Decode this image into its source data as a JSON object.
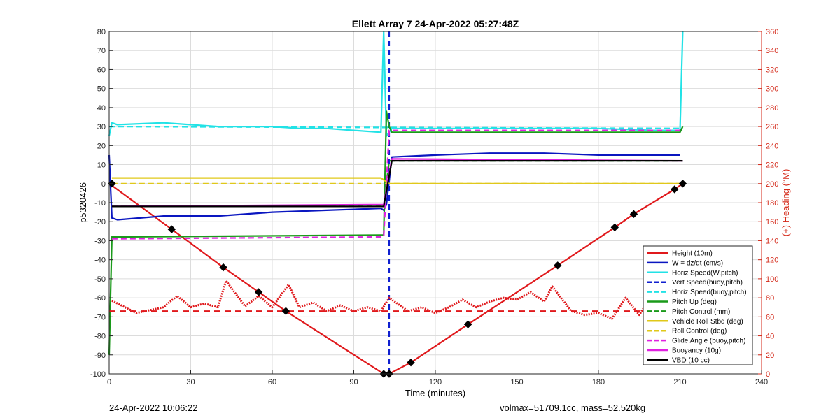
{
  "chart_data": {
    "type": "line",
    "title": "Ellett Array 7 24-Apr-2022 05:27:48Z",
    "xlabel": "Time (minutes)",
    "ylabel": "p5320426",
    "ylabel_right": "(+) Heading (°M)",
    "xlim": [
      0,
      240
    ],
    "ylim": [
      -100,
      80
    ],
    "ylim_right": [
      0,
      360
    ],
    "x_ticks": [
      "0",
      "30",
      "60",
      "90",
      "120",
      "150",
      "180",
      "210",
      "240"
    ],
    "y_ticks": [
      "80",
      "70",
      "60",
      "50",
      "40",
      "30",
      "20",
      "10",
      "0",
      "-10",
      "-20",
      "-30",
      "-40",
      "-50",
      "-60",
      "-70",
      "-80",
      "-90",
      "-100"
    ],
    "y_right_ticks": [
      "360",
      "340",
      "320",
      "300",
      "280",
      "260",
      "240",
      "220",
      "200",
      "180",
      "160",
      "140",
      "120",
      "100",
      "80",
      "60",
      "40",
      "20",
      "0"
    ],
    "grid": true,
    "legend_position": "bottom-right",
    "colors": {
      "height": "#e0191c",
      "w": "#0a16c0",
      "horiz": "#22e2e6",
      "vert": "#1020d0",
      "pitch": "#1a9a1a",
      "roll": "#e0c81a",
      "glide": "#e020e0",
      "vbd": "#000000",
      "right_axis": "#d42a1a"
    },
    "series": [
      {
        "name": "Height (10m)",
        "style": "solid",
        "color": "#e0191c",
        "x": [
          0,
          1,
          23,
          42,
          55,
          65,
          101,
          103,
          111,
          132,
          165,
          186,
          193,
          208,
          211
        ],
        "y": [
          0,
          -1,
          -24,
          -44,
          -57,
          -67,
          -100,
          -100,
          -94,
          -74,
          -43,
          -23,
          -16,
          -3,
          0
        ]
      },
      {
        "name": "W = dz/dt (cm/s)",
        "style": "solid",
        "color": "#0a16c0",
        "x": [
          0,
          1,
          3,
          20,
          40,
          60,
          80,
          100,
          101,
          102,
          104,
          120,
          140,
          160,
          180,
          200,
          210
        ],
        "y": [
          15,
          -18,
          -19,
          -17,
          -17,
          -15,
          -14,
          -13,
          -14,
          -11,
          14,
          15,
          16,
          16,
          15,
          15,
          15
        ]
      },
      {
        "name": "Horiz Speed(W,pitch)",
        "style": "solid",
        "color": "#22e2e6",
        "x": [
          0,
          1,
          3,
          20,
          40,
          60,
          70,
          80,
          90,
          100,
          101,
          102,
          104,
          120,
          140,
          160,
          180,
          200,
          210,
          211
        ],
        "y": [
          25,
          32,
          31,
          32,
          30,
          30,
          29,
          29,
          28,
          27,
          80,
          25,
          29,
          29,
          29,
          29,
          29,
          28,
          28,
          80
        ]
      },
      {
        "name": "Vert Speed(buoy,pitch)",
        "style": "dashed",
        "color": "#1020d0",
        "x": [
          103,
          103
        ],
        "y": [
          80,
          -100
        ]
      },
      {
        "name": "Horiz Speed(buoy,pitch)",
        "style": "dashed",
        "color": "#22e2e6",
        "x": [
          0,
          211
        ],
        "y": [
          30,
          29
        ]
      },
      {
        "name": "Pitch Up (deg)",
        "style": "solid",
        "color": "#1a9a1a",
        "x": [
          0,
          1,
          3,
          100,
          101,
          102,
          103,
          104,
          120,
          210,
          211
        ],
        "y": [
          -90,
          -28,
          -28,
          -27,
          -27,
          38,
          30,
          27,
          27,
          27,
          30
        ]
      },
      {
        "name": "Pitch Control (mm)",
        "style": "dashed",
        "color": "#1a9a1a",
        "x": [
          1,
          101,
          103,
          211
        ],
        "y": [
          -12,
          -12,
          12,
          12
        ]
      },
      {
        "name": "Vehicle Roll Stbd (deg)",
        "style": "solid",
        "color": "#e0c81a",
        "x": [
          1,
          100,
          103,
          211
        ],
        "y": [
          3,
          3,
          0,
          0
        ]
      },
      {
        "name": "Roll Control (deg)",
        "style": "dashed",
        "color": "#e0c81a",
        "x": [
          1,
          101,
          103,
          211
        ],
        "y": [
          0,
          0,
          0,
          0
        ]
      },
      {
        "name": "Glide Angle (buoy,pitch)",
        "style": "dashed",
        "color": "#e020e0",
        "x": [
          1,
          101,
          103,
          211
        ],
        "y": [
          -29,
          -28,
          28,
          28
        ]
      },
      {
        "name": "Buoyancy (10g)",
        "style": "solid",
        "color": "#e020e0",
        "x": [
          1,
          101,
          104,
          211
        ],
        "y": [
          -12,
          -11,
          13,
          12
        ]
      },
      {
        "name": "VBD (10 cc)",
        "style": "solid",
        "color": "#000000",
        "x": [
          1,
          2,
          101,
          104,
          211
        ],
        "y": [
          -12,
          -12,
          -12,
          12,
          12
        ]
      }
    ],
    "heading": {
      "axis": "right",
      "x": [
        1,
        10,
        20,
        25,
        30,
        35,
        40,
        43,
        50,
        55,
        60,
        66,
        70,
        75,
        80,
        85,
        90,
        95,
        100,
        103,
        110,
        115,
        120,
        125,
        130,
        135,
        140,
        145,
        150,
        155,
        160,
        163,
        170,
        175,
        180,
        185,
        190,
        195,
        200,
        205,
        210
      ],
      "y": [
        77,
        64,
        70,
        82,
        70,
        74,
        70,
        98,
        71,
        82,
        70,
        94,
        70,
        75,
        66,
        72,
        66,
        70,
        66,
        80,
        66,
        70,
        64,
        70,
        78,
        70,
        76,
        80,
        78,
        86,
        76,
        92,
        66,
        62,
        64,
        58,
        80,
        62,
        84,
        70,
        70
      ],
      "mean_heading": 66
    },
    "markers": {
      "x": [
        1,
        23,
        42,
        55,
        65,
        101,
        103,
        111,
        132,
        165,
        186,
        193,
        208,
        211
      ],
      "y": [
        0,
        -24,
        -44,
        -57,
        -67,
        -100,
        -100,
        -94,
        -74,
        -43,
        -23,
        -16,
        -3,
        0
      ]
    }
  },
  "footer": {
    "timestamp": "24-Apr-2022 10:06:22",
    "stats": "volmax=51709.1cc, mass=52.520kg"
  }
}
